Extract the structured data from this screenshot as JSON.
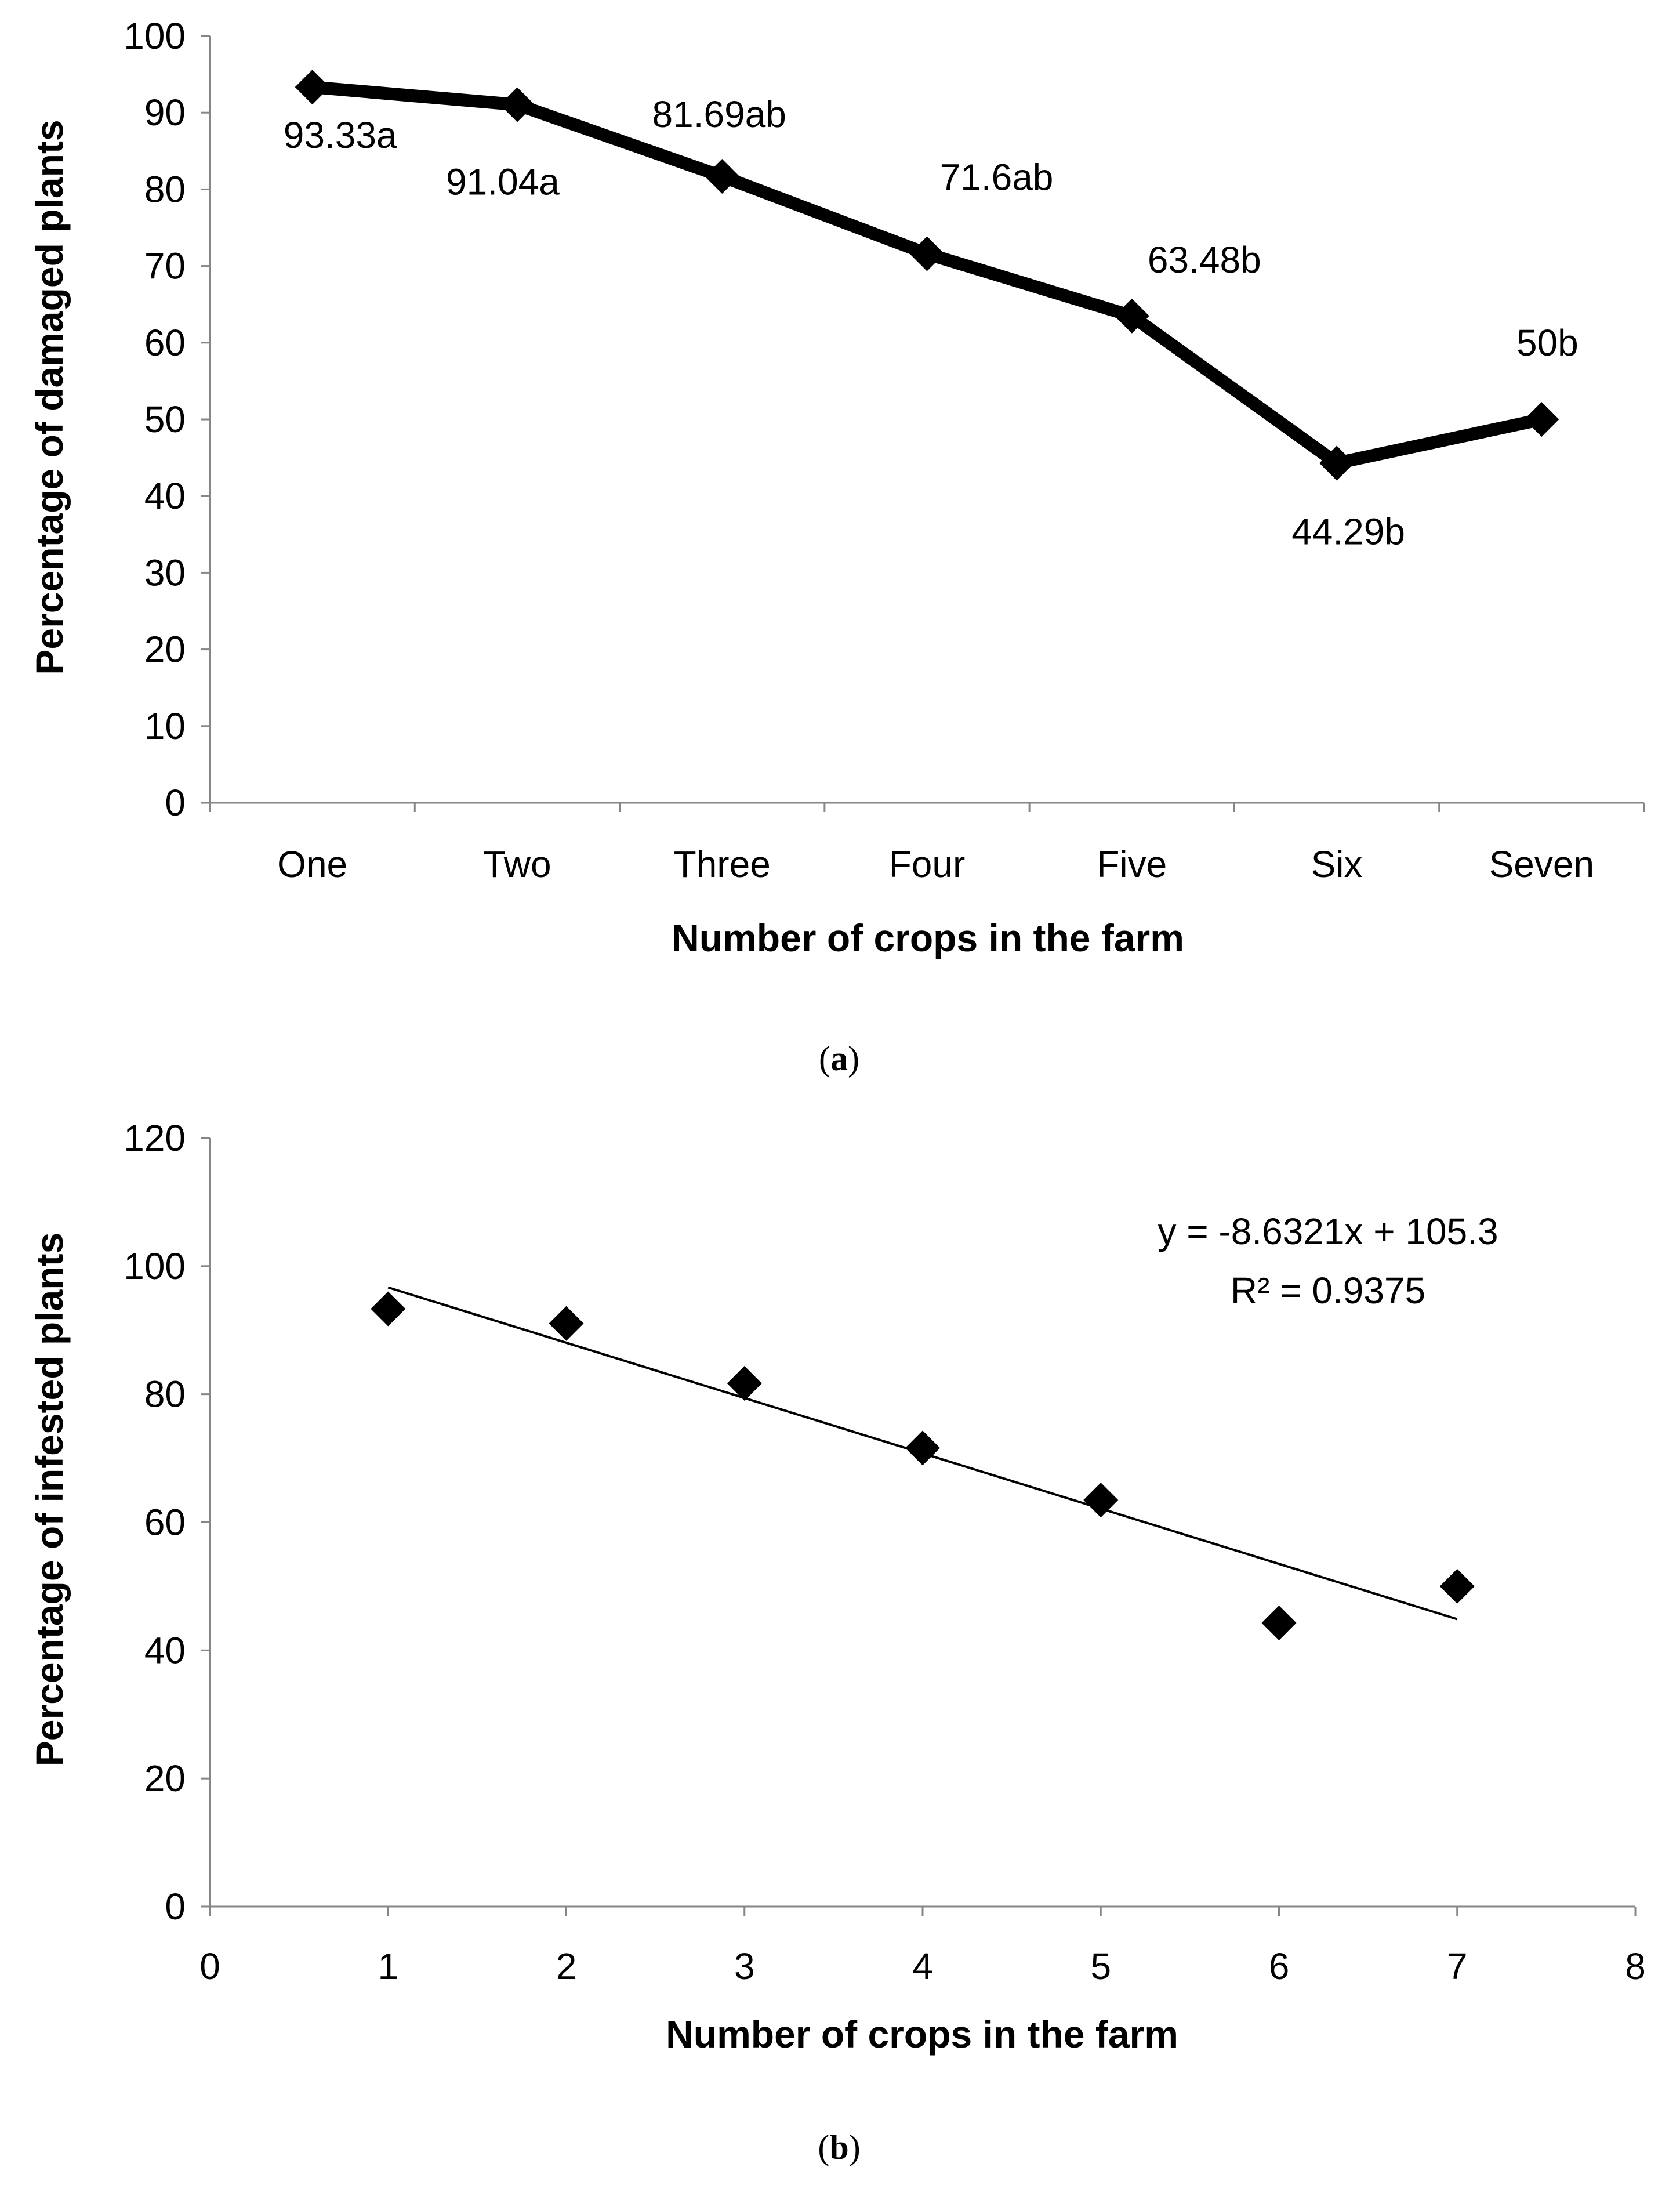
{
  "chart_data": [
    {
      "type": "line",
      "caption_open": "(",
      "caption_letter": "a",
      "caption_close": ")",
      "title": "",
      "xlabel": "Number of crops in the farm",
      "ylabel": "Percentage of damaged plants",
      "categories": [
        "One",
        "Two",
        "Three",
        "Four",
        "Five",
        "Six",
        "Seven"
      ],
      "values": [
        93.33,
        91.04,
        81.69,
        71.6,
        63.48,
        44.29,
        50
      ],
      "data_labels": [
        "93.33a",
        "91.04a",
        "81.69ab",
        "71.6ab",
        "63.48b",
        "44.29b",
        "50b"
      ],
      "ylim": [
        0,
        100
      ],
      "yticks": [
        0,
        10,
        20,
        30,
        40,
        50,
        60,
        70,
        80,
        90,
        100
      ],
      "grid": false,
      "line_color": "#000000",
      "marker": "diamond"
    },
    {
      "type": "scatter",
      "caption_open": "(",
      "caption_letter": "b",
      "caption_close": ")",
      "title": "",
      "xlabel": "Number of crops in the farm",
      "ylabel": "Percentage of infested plants",
      "x": [
        1,
        2,
        3,
        4,
        5,
        6,
        7
      ],
      "y": [
        93.33,
        91.04,
        81.69,
        71.6,
        63.48,
        44.29,
        50
      ],
      "xlim": [
        0,
        8
      ],
      "ylim": [
        0,
        120
      ],
      "xticks": [
        0,
        1,
        2,
        3,
        4,
        5,
        6,
        7,
        8
      ],
      "yticks": [
        0,
        20,
        40,
        60,
        80,
        100,
        120
      ],
      "grid": false,
      "trendline": {
        "type": "linear",
        "slope": -8.6321,
        "intercept": 105.3,
        "x_range": [
          1,
          7
        ]
      },
      "equation_text": "y = -8.6321x + 105.3",
      "r2_text": "R² = 0.9375",
      "marker": "diamond",
      "marker_color": "#000000"
    }
  ]
}
